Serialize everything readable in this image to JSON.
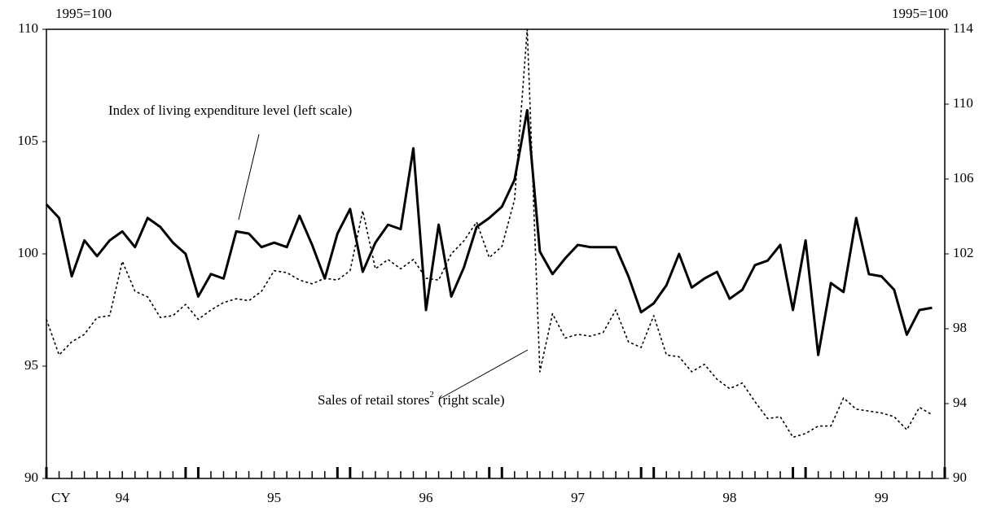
{
  "chart_data": {
    "type": "line",
    "ylabel": "1995=100",
    "y2label": "1995=100",
    "xlabel": "CY",
    "categories": [
      null,
      null,
      null,
      null,
      null,
      null,
      "94",
      null,
      null,
      null,
      null,
      null,
      null,
      null,
      null,
      null,
      null,
      null,
      "95",
      null,
      null,
      null,
      null,
      null,
      null,
      null,
      null,
      null,
      null,
      null,
      "96",
      null,
      null,
      null,
      null,
      null,
      null,
      null,
      null,
      null,
      null,
      null,
      "97",
      null,
      null,
      null,
      null,
      null,
      null,
      null,
      null,
      null,
      null,
      null,
      "98",
      null,
      null,
      null,
      null,
      null,
      null,
      null,
      null,
      null,
      null,
      null,
      "99",
      null,
      null,
      null,
      null
    ],
    "ylim": [
      90,
      110
    ],
    "yticks": [
      90,
      95,
      100,
      105,
      110
    ],
    "y2lim": [
      90,
      114
    ],
    "y2ticks": [
      90,
      94,
      98,
      102,
      106,
      110,
      114
    ],
    "annotations": [
      {
        "text": "Index of living expenditure level (left scale)"
      },
      {
        "text": "Sales of retail stores",
        "sup": "2",
        "text2": "(right scale)"
      }
    ],
    "series": [
      {
        "color": "#000000",
        "dash": false,
        "values": [
          102.2,
          101.6,
          99.0,
          100.6,
          99.9,
          100.6,
          101.0,
          100.3,
          101.6,
          101.2,
          100.5,
          100.0,
          98.1,
          99.1,
          98.9,
          101.0,
          100.9,
          100.3,
          100.5,
          100.3,
          101.7,
          100.4,
          98.9,
          100.9,
          102.0,
          99.2,
          100.5,
          101.3,
          101.1,
          104.7,
          97.5,
          101.3,
          98.1,
          99.4,
          101.2,
          101.6,
          102.1,
          103.3,
          106.4,
          100.1,
          99.1,
          99.8,
          100.4,
          100.3,
          100.3,
          100.3,
          99.0,
          97.4,
          97.8,
          98.6,
          100.0,
          98.5,
          98.9,
          99.2,
          98.0,
          98.4,
          99.5,
          99.7,
          100.4,
          97.5,
          100.6,
          95.5,
          98.7,
          98.3,
          101.6,
          99.1,
          99.0,
          98.4,
          96.4,
          97.5,
          97.6
        ]
      },
      {
        "color": "#000000",
        "dash": true,
        "axis": "y2",
        "values": [
          98.5,
          96.6,
          97.3,
          97.7,
          98.6,
          98.7,
          101.6,
          100.0,
          99.7,
          98.6,
          98.7,
          99.3,
          98.5,
          99.0,
          99.4,
          99.6,
          99.5,
          100.0,
          101.1,
          101.0,
          100.6,
          100.4,
          100.7,
          100.6,
          101.1,
          104.3,
          101.2,
          101.7,
          101.2,
          101.7,
          100.7,
          100.6,
          102.0,
          102.7,
          103.7,
          101.8,
          102.4,
          104.9,
          114.0,
          95.7,
          98.8,
          97.5,
          97.7,
          97.6,
          97.8,
          99.0,
          97.3,
          97.0,
          98.7,
          96.6,
          96.5,
          95.7,
          96.1,
          95.3,
          94.8,
          95.1,
          94.1,
          93.2,
          93.3,
          92.2,
          92.4,
          92.8,
          92.8,
          94.3,
          93.7,
          93.6,
          93.5,
          93.3,
          92.6,
          93.8,
          93.4
        ]
      }
    ]
  }
}
